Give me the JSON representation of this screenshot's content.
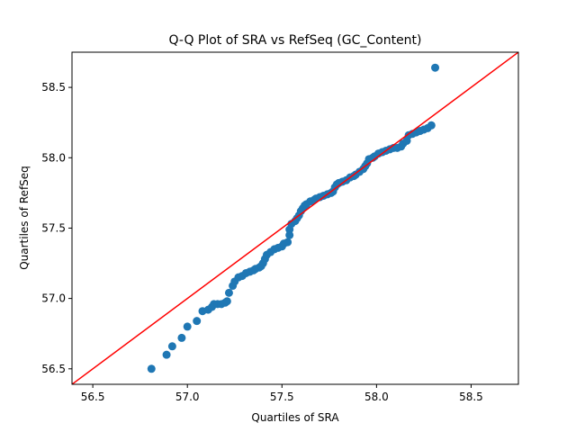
{
  "chart_data": {
    "type": "scatter",
    "title": "Q-Q Plot of SRA vs RefSeq (GC_Content)",
    "xlabel": "Quartiles of SRA",
    "ylabel": "Quartiles of RefSeq",
    "xlim": [
      56.39,
      58.75
    ],
    "ylim": [
      56.39,
      58.75
    ],
    "xticks": [
      56.5,
      57.0,
      57.5,
      58.0,
      58.5
    ],
    "yticks": [
      56.5,
      57.0,
      57.5,
      58.0,
      58.5
    ],
    "xtick_labels": [
      "56.5",
      "57.0",
      "57.5",
      "58.0",
      "58.5"
    ],
    "ytick_labels": [
      "56.5",
      "57.0",
      "57.5",
      "58.0",
      "58.5"
    ],
    "grid": false,
    "colors": {
      "points": "#1f77b4",
      "reference_line": "#ff0000"
    },
    "reference_line": {
      "from": [
        56.39,
        56.39
      ],
      "to": [
        58.75,
        58.75
      ]
    },
    "points": [
      [
        56.81,
        56.5
      ],
      [
        56.89,
        56.6
      ],
      [
        56.92,
        56.66
      ],
      [
        56.97,
        56.72
      ],
      [
        57.0,
        56.8
      ],
      [
        57.05,
        56.84
      ],
      [
        57.08,
        56.91
      ],
      [
        57.11,
        56.92
      ],
      [
        57.13,
        56.94
      ],
      [
        57.14,
        56.96
      ],
      [
        57.16,
        56.96
      ],
      [
        57.18,
        56.96
      ],
      [
        57.2,
        56.97
      ],
      [
        57.21,
        56.98
      ],
      [
        57.22,
        57.04
      ],
      [
        57.24,
        57.09
      ],
      [
        57.25,
        57.12
      ],
      [
        57.27,
        57.15
      ],
      [
        57.29,
        57.16
      ],
      [
        57.31,
        57.18
      ],
      [
        57.33,
        57.19
      ],
      [
        57.35,
        57.2
      ],
      [
        57.36,
        57.21
      ],
      [
        57.38,
        57.22
      ],
      [
        57.39,
        57.23
      ],
      [
        57.4,
        57.25
      ],
      [
        57.41,
        57.28
      ],
      [
        57.42,
        57.31
      ],
      [
        57.44,
        57.33
      ],
      [
        57.46,
        57.35
      ],
      [
        57.48,
        57.36
      ],
      [
        57.5,
        57.37
      ],
      [
        57.51,
        57.39
      ],
      [
        57.53,
        57.4
      ],
      [
        57.54,
        57.45
      ],
      [
        57.54,
        57.49
      ],
      [
        57.55,
        57.53
      ],
      [
        57.57,
        57.55
      ],
      [
        57.58,
        57.57
      ],
      [
        57.59,
        57.59
      ],
      [
        57.6,
        57.62
      ],
      [
        57.61,
        57.64
      ],
      [
        57.62,
        57.66
      ],
      [
        57.63,
        57.67
      ],
      [
        57.65,
        57.69
      ],
      [
        57.67,
        57.7
      ],
      [
        57.68,
        57.71
      ],
      [
        57.7,
        57.72
      ],
      [
        57.72,
        57.73
      ],
      [
        57.74,
        57.74
      ],
      [
        57.76,
        57.75
      ],
      [
        57.77,
        57.76
      ],
      [
        57.78,
        57.79
      ],
      [
        57.79,
        57.81
      ],
      [
        57.8,
        57.82
      ],
      [
        57.82,
        57.83
      ],
      [
        57.84,
        57.84
      ],
      [
        57.86,
        57.86
      ],
      [
        57.88,
        57.87
      ],
      [
        57.89,
        57.88
      ],
      [
        57.91,
        57.9
      ],
      [
        57.93,
        57.92
      ],
      [
        57.94,
        57.94
      ],
      [
        57.95,
        57.96
      ],
      [
        57.96,
        57.99
      ],
      [
        57.98,
        58.0
      ],
      [
        57.99,
        58.01
      ],
      [
        58.01,
        58.03
      ],
      [
        58.03,
        58.04
      ],
      [
        58.05,
        58.05
      ],
      [
        58.07,
        58.06
      ],
      [
        58.09,
        58.07
      ],
      [
        58.11,
        58.07
      ],
      [
        58.13,
        58.08
      ],
      [
        58.14,
        58.1
      ],
      [
        58.16,
        58.12
      ],
      [
        58.17,
        58.16
      ],
      [
        58.19,
        58.17
      ],
      [
        58.21,
        58.18
      ],
      [
        58.23,
        58.19
      ],
      [
        58.25,
        58.2
      ],
      [
        58.27,
        58.21
      ],
      [
        58.29,
        58.23
      ],
      [
        58.31,
        58.64
      ]
    ]
  }
}
